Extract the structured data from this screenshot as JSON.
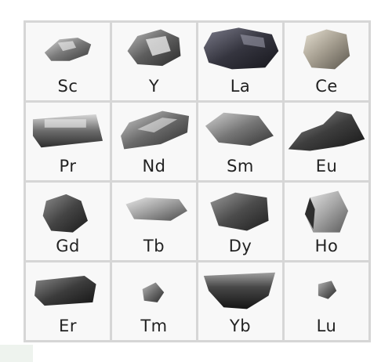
{
  "elements": [
    {
      "symbol": "Sc",
      "icon": "scandium-sample-icon"
    },
    {
      "symbol": "Y",
      "icon": "yttrium-sample-icon"
    },
    {
      "symbol": "La",
      "icon": "lanthanum-sample-icon"
    },
    {
      "symbol": "Ce",
      "icon": "cerium-sample-icon"
    },
    {
      "symbol": "Pr",
      "icon": "praseodymium-sample-icon"
    },
    {
      "symbol": "Nd",
      "icon": "neodymium-sample-icon"
    },
    {
      "symbol": "Sm",
      "icon": "samarium-sample-icon"
    },
    {
      "symbol": "Eu",
      "icon": "europium-sample-icon"
    },
    {
      "symbol": "Gd",
      "icon": "gadolinium-sample-icon"
    },
    {
      "symbol": "Tb",
      "icon": "terbium-sample-icon"
    },
    {
      "symbol": "Dy",
      "icon": "dysprosium-sample-icon"
    },
    {
      "symbol": "Ho",
      "icon": "holmium-sample-icon"
    },
    {
      "symbol": "Er",
      "icon": "erbium-sample-icon"
    },
    {
      "symbol": "Tm",
      "icon": "thulium-sample-icon"
    },
    {
      "symbol": "Yb",
      "icon": "ytterbium-sample-icon"
    },
    {
      "symbol": "Lu",
      "icon": "lutetium-sample-icon"
    }
  ],
  "colors": {
    "metal_dark": "#3a3a3a",
    "metal_mid": "#7d7d7d",
    "metal_light": "#d0d0d0",
    "grid_line": "#d6d6d6"
  }
}
